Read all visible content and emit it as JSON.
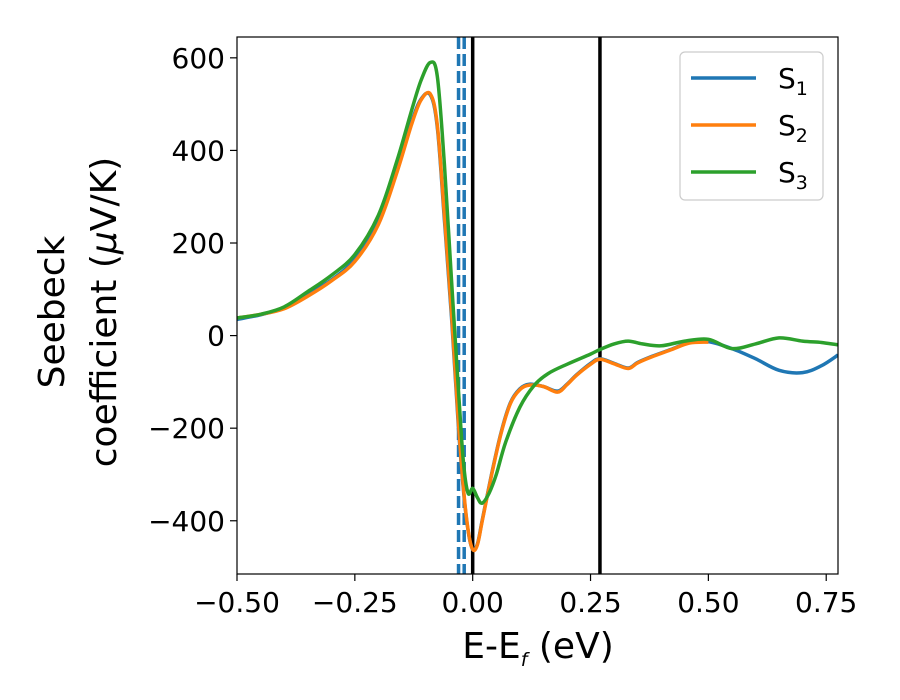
{
  "chart_data": {
    "type": "line",
    "xlabel": {
      "main": "E-E",
      "sub": "f",
      "unit": " (eV)"
    },
    "ylabel": {
      "line1": "Seebeck",
      "line2_prefix": "coefficient  (",
      "line2_mu": "μ",
      "line2_suffix": "V/K)"
    },
    "xlim": [
      -0.5,
      0.775
    ],
    "ylim": [
      -515,
      645
    ],
    "xticks": [
      -0.5,
      -0.25,
      0.0,
      0.25,
      0.5,
      0.75
    ],
    "xtick_labels": [
      "−0.50",
      "−0.25",
      "0.00",
      "0.25",
      "0.50",
      "0.75"
    ],
    "yticks": [
      -400,
      -200,
      0,
      200,
      400,
      600
    ],
    "ytick_labels": [
      "−400",
      "−200",
      "0",
      "200",
      "400",
      "600"
    ],
    "grid": false,
    "legend_position": "top-right",
    "vertical_lines": [
      {
        "x": 0.0,
        "color": "#000000",
        "style": "solid"
      },
      {
        "x": 0.27,
        "color": "#000000",
        "style": "solid"
      },
      {
        "x": -0.03,
        "color": "#1f77b4",
        "style": "dashed"
      },
      {
        "x": -0.018,
        "color": "#1f77b4",
        "style": "dashed"
      }
    ],
    "series": [
      {
        "name": "S",
        "sub": "1",
        "color": "#1f77b4",
        "x": [
          -0.5,
          -0.45,
          -0.4,
          -0.35,
          -0.3,
          -0.25,
          -0.2,
          -0.16,
          -0.13,
          -0.11,
          -0.09,
          -0.075,
          -0.06,
          -0.045,
          -0.03,
          -0.02,
          -0.01,
          0.0,
          0.01,
          0.02,
          0.04,
          0.06,
          0.08,
          0.1,
          0.12,
          0.15,
          0.18,
          0.2,
          0.22,
          0.25,
          0.27,
          0.3,
          0.33,
          0.35,
          0.38,
          0.42,
          0.46,
          0.5,
          0.55,
          0.6,
          0.65,
          0.7,
          0.74,
          0.775
        ],
        "y": [
          35,
          45,
          60,
          90,
          120,
          165,
          245,
          360,
          460,
          510,
          520,
          450,
          250,
          40,
          -200,
          -330,
          -420,
          -462,
          -450,
          -400,
          -300,
          -210,
          -145,
          -115,
          -105,
          -110,
          -120,
          -105,
          -85,
          -60,
          -50,
          -60,
          -70,
          -58,
          -45,
          -30,
          -15,
          -13,
          -28,
          -50,
          -75,
          -80,
          -65,
          -42
        ]
      },
      {
        "name": "S",
        "sub": "2",
        "color": "#ff7f0e",
        "x": [
          -0.5,
          -0.45,
          -0.4,
          -0.35,
          -0.3,
          -0.25,
          -0.2,
          -0.16,
          -0.13,
          -0.11,
          -0.09,
          -0.075,
          -0.06,
          -0.045,
          -0.03,
          -0.02,
          -0.01,
          0.0,
          0.01,
          0.02,
          0.04,
          0.06,
          0.08,
          0.1,
          0.12,
          0.15,
          0.18,
          0.2,
          0.22,
          0.25,
          0.27,
          0.3,
          0.33,
          0.35,
          0.38,
          0.42,
          0.46,
          0.5
        ],
        "y": [
          38,
          46,
          58,
          85,
          118,
          160,
          240,
          355,
          455,
          508,
          522,
          455,
          260,
          50,
          -190,
          -325,
          -418,
          -462,
          -452,
          -402,
          -302,
          -212,
          -147,
          -117,
          -107,
          -110,
          -122,
          -106,
          -86,
          -62,
          -51,
          -61,
          -71,
          -59,
          -46,
          -31,
          -16,
          -14
        ]
      },
      {
        "name": "S",
        "sub": "3",
        "color": "#2ca02c",
        "x": [
          -0.5,
          -0.45,
          -0.4,
          -0.35,
          -0.3,
          -0.25,
          -0.2,
          -0.16,
          -0.13,
          -0.11,
          -0.09,
          -0.075,
          -0.06,
          -0.045,
          -0.03,
          -0.02,
          -0.01,
          0.0,
          0.01,
          0.02,
          0.035,
          0.05,
          0.07,
          0.1,
          0.13,
          0.16,
          0.2,
          0.25,
          0.27,
          0.3,
          0.33,
          0.36,
          0.4,
          0.45,
          0.5,
          0.55,
          0.6,
          0.65,
          0.7,
          0.74,
          0.775
        ],
        "y": [
          38,
          46,
          62,
          95,
          130,
          175,
          260,
          380,
          485,
          550,
          590,
          560,
          370,
          120,
          -120,
          -270,
          -340,
          -330,
          -350,
          -362,
          -340,
          -300,
          -230,
          -155,
          -108,
          -82,
          -62,
          -40,
          -30,
          -18,
          -12,
          -18,
          -22,
          -12,
          -8,
          -28,
          -18,
          -5,
          -12,
          -15,
          -20
        ]
      }
    ]
  }
}
